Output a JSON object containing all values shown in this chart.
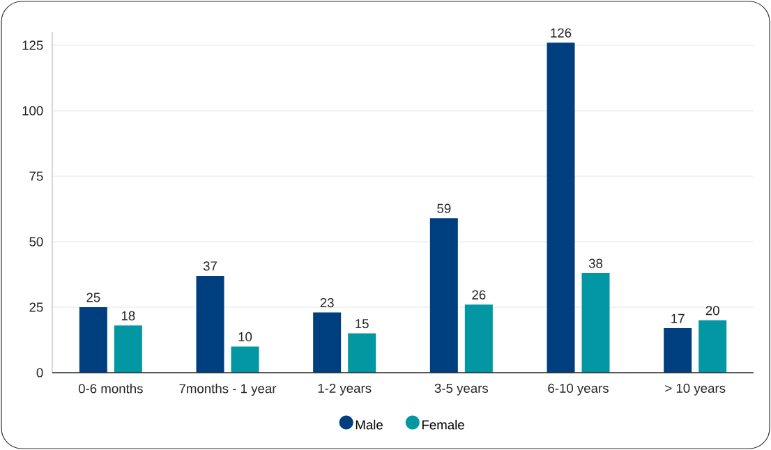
{
  "chart_data": {
    "type": "bar",
    "categories": [
      "0-6 months",
      "7months - 1 year",
      "1-2 years",
      "3-5 years",
      "6-10 years",
      "> 10 years"
    ],
    "series": [
      {
        "name": "Male",
        "color": "#003f7f",
        "values": [
          25,
          37,
          23,
          59,
          126,
          17
        ]
      },
      {
        "name": "Female",
        "color": "#0297a2",
        "values": [
          18,
          10,
          15,
          26,
          38,
          20
        ]
      }
    ],
    "ylim": [
      0,
      130
    ],
    "yticks": [
      0,
      25,
      50,
      75,
      100,
      125
    ],
    "grid": "y",
    "legend": "bottom",
    "data_labels": true
  }
}
